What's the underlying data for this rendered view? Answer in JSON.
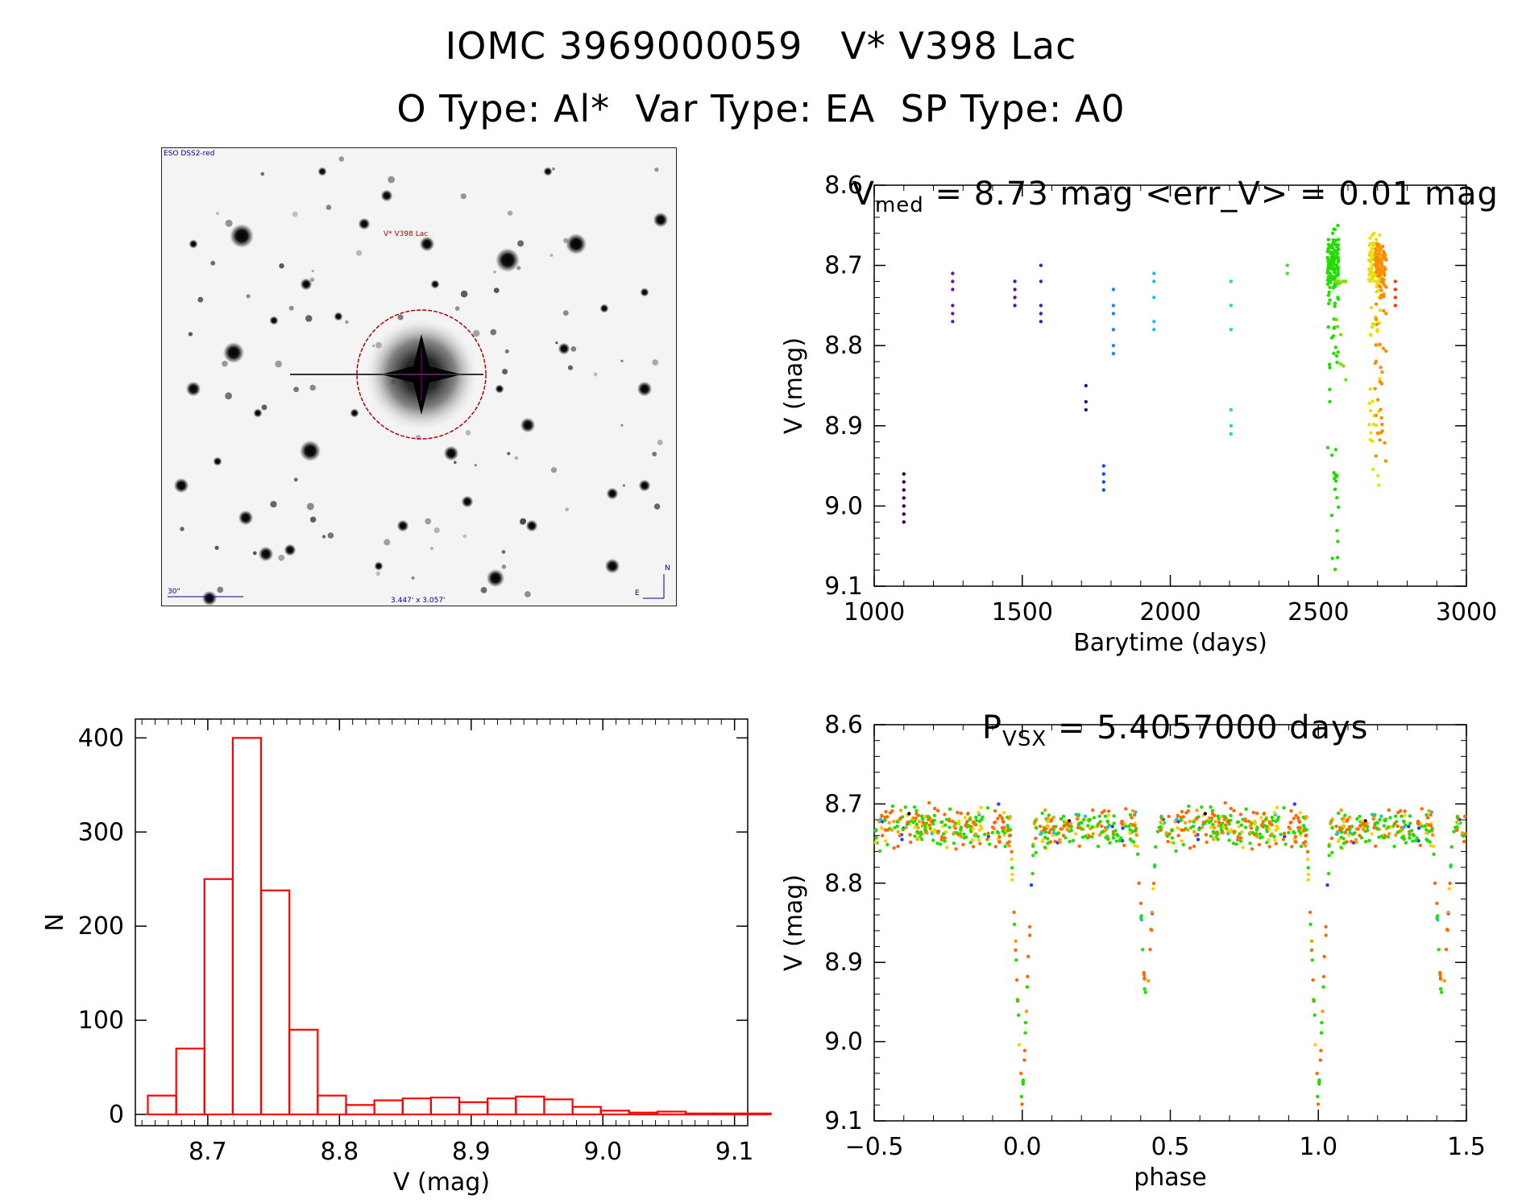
{
  "header": {
    "line1": "IOMC 3969000059   V* V398 Lac",
    "line2": "O Type: Al*  Var Type: EA  SP Type: A0"
  },
  "finder": {
    "survey_label": "ESO DSS2-red",
    "target_label": "V* V398 Lac",
    "scale_label": "30\"",
    "size_label": "3.447' x 3.057'",
    "north_label": "N",
    "east_label": "E"
  },
  "lightcurve": {
    "title_main": "V",
    "title_sub": "med",
    "title_rest": " = 8.73 mag <err_V> = 0.01 mag"
  },
  "phased": {
    "title_main": "P",
    "title_sub": "VSX",
    "title_rest": " = 5.4057000 days"
  },
  "colors": {
    "histogram": "#ff0000",
    "circle": "#b00000",
    "finder_text": "#00008b"
  },
  "chart_data": [
    {
      "id": "lightcurve",
      "type": "scatter",
      "xlabel": "Barytime (days)",
      "ylabel": "V (mag)",
      "xlim": [
        1000,
        3000
      ],
      "ylim": [
        9.1,
        8.6
      ],
      "xticks": [
        1000,
        1500,
        2000,
        2500,
        3000
      ],
      "xtick_labels": [
        "1000",
        "1500",
        "2000",
        "2500",
        "3000"
      ],
      "yticks": [
        8.6,
        8.7,
        8.8,
        8.9,
        9.0,
        9.1
      ],
      "ytick_labels": [
        "8.6",
        "8.7",
        "8.8",
        "8.9",
        "9.0",
        "9.1"
      ],
      "median_mag": 8.73,
      "clusters": [
        {
          "t": 1100,
          "mags": [
            8.96,
            8.97,
            8.98,
            8.99,
            9.0,
            9.01,
            9.02
          ],
          "color": "#3b0040"
        },
        {
          "t": 1265,
          "mags": [
            8.71,
            8.72,
            8.73,
            8.75,
            8.76,
            8.77
          ],
          "color": "#6a1b9a"
        },
        {
          "t": 1475,
          "mags": [
            8.72,
            8.73,
            8.74,
            8.75
          ],
          "color": "#5a1a8c"
        },
        {
          "t": 1563,
          "mags": [
            8.7,
            8.72,
            8.75,
            8.76,
            8.77
          ],
          "color": "#4527a0"
        },
        {
          "t": 1715,
          "mags": [
            8.85,
            8.87,
            8.88
          ],
          "color": "#1a237e"
        },
        {
          "t": 1775,
          "mags": [
            8.95,
            8.96,
            8.97,
            8.98
          ],
          "color": "#1e40ff"
        },
        {
          "t": 1808,
          "mags": [
            8.73,
            8.75,
            8.76,
            8.78,
            8.8,
            8.81
          ],
          "color": "#1e88e5"
        },
        {
          "t": 1945,
          "mags": [
            8.71,
            8.72,
            8.74,
            8.77,
            8.78
          ],
          "color": "#29b6f6"
        },
        {
          "t": 2205,
          "mags": [
            8.72,
            8.75,
            8.78,
            8.88,
            8.9,
            8.91
          ],
          "color": "#26d7b0"
        },
        {
          "t": 2395,
          "mags": [
            8.7,
            8.71
          ],
          "color": "#43e043"
        },
        {
          "t": 2550,
          "mags_range": [
            8.65,
            9.08
          ],
          "n": 160,
          "color": "#22dd00"
        },
        {
          "t": 2575,
          "mags_range": [
            8.72,
            8.85
          ],
          "n": 20,
          "color": "#7fe000"
        },
        {
          "t": 2690,
          "mags_range": [
            8.66,
            8.98
          ],
          "n": 110,
          "color": "#e8e000"
        },
        {
          "t": 2710,
          "mags_range": [
            8.66,
            8.96
          ],
          "n": 110,
          "color": "#ff8c00"
        },
        {
          "t": 2760,
          "mags": [
            8.72,
            8.73,
            8.74,
            8.75
          ],
          "color": "#ff3a00"
        }
      ]
    },
    {
      "id": "histogram",
      "type": "bar",
      "xlabel": "V (mag)",
      "ylabel": "N",
      "xlim": [
        8.645,
        9.11
      ],
      "ylim": [
        0,
        420
      ],
      "xticks": [
        8.7,
        8.8,
        8.9,
        9.0,
        9.1
      ],
      "xtick_labels": [
        "8.7",
        "8.8",
        "8.9",
        "9.0",
        "9.1"
      ],
      "yticks": [
        0,
        100,
        200,
        300,
        400
      ],
      "ytick_labels": [
        "0",
        "100",
        "200",
        "300",
        "400"
      ],
      "bin_width": 0.0215,
      "bin_start": 8.6545,
      "values": [
        20,
        70,
        250,
        400,
        238,
        90,
        20,
        10,
        15,
        17,
        18,
        13,
        17,
        19,
        16,
        8,
        4,
        2,
        3,
        1,
        1,
        1
      ]
    },
    {
      "id": "phased",
      "type": "scatter",
      "xlabel": "phase",
      "ylabel": "V (mag)",
      "xlim": [
        -0.5,
        1.5
      ],
      "ylim": [
        9.1,
        8.6
      ],
      "xticks": [
        -0.5,
        0.0,
        0.5,
        1.0,
        1.5
      ],
      "xtick_labels": [
        "−0.5",
        "0.0",
        "0.5",
        "1.0",
        "1.5"
      ],
      "yticks": [
        8.6,
        8.7,
        8.8,
        8.9,
        9.0,
        9.1
      ],
      "ytick_labels": [
        "8.6",
        "8.7",
        "8.8",
        "8.9",
        "9.0",
        "9.1"
      ],
      "baseline_mag": 8.73,
      "primary_eclipse": {
        "phase": 0.0,
        "min_mag": 9.08
      },
      "secondary_eclipse": {
        "phase": 0.42,
        "min_mag": 8.97
      },
      "palette": [
        "#22dd00",
        "#ff6a00",
        "#ffd000",
        "#ff9a00",
        "#1e40ff",
        "#29b6f6",
        "#000000"
      ]
    }
  ]
}
